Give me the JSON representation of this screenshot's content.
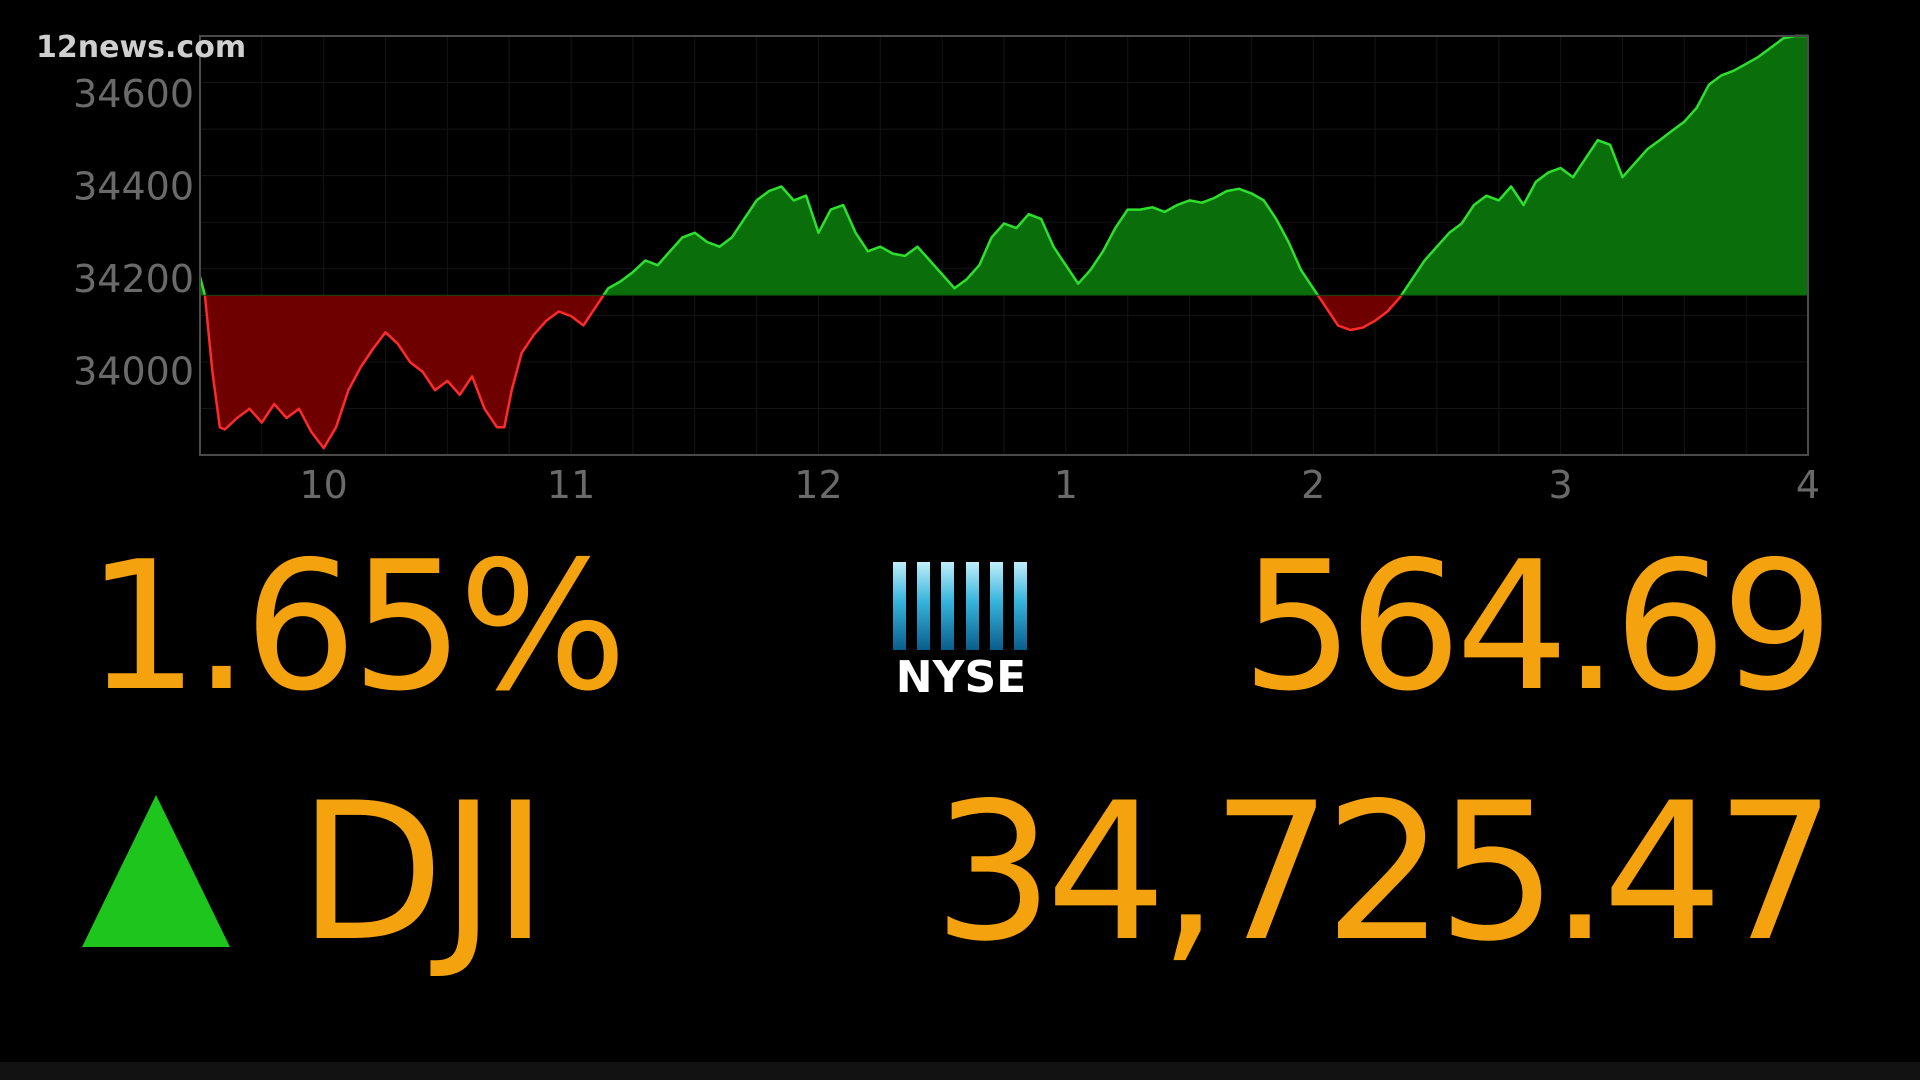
{
  "watermark": "12news.com",
  "colors": {
    "background": "#000000",
    "figure": "#f5a20f",
    "gain_line": "#2ee02e",
    "gain_fill": "#0a6e0a",
    "loss_line": "#ff2a2a",
    "loss_fill": "#6e0000",
    "up_arrow": "#1dc51d",
    "tick_text": "#6a6a6a"
  },
  "chart_data": {
    "type": "area",
    "title": "",
    "xlabel": "",
    "ylabel": "",
    "baseline": 34165,
    "xlim": [
      9.5,
      16
    ],
    "ylim": [
      33820,
      34725
    ],
    "grid": true,
    "yticks": [
      34000,
      34200,
      34400,
      34600
    ],
    "ytick_labels": [
      "34000",
      "34200",
      "34400",
      "34600"
    ],
    "xticks": [
      10,
      11,
      12,
      13,
      14,
      15,
      16
    ],
    "xtick_labels": [
      "10",
      "11",
      "12",
      "1",
      "2",
      "3",
      "4"
    ],
    "series": [
      {
        "x": [
          9.5,
          9.52,
          9.55,
          9.58,
          9.6,
          9.65,
          9.7,
          9.75,
          9.8,
          9.85,
          9.9,
          9.95,
          10.0,
          10.05,
          10.1,
          10.15,
          10.2,
          10.25,
          10.3,
          10.35,
          10.4,
          10.45,
          10.5,
          10.55,
          10.6,
          10.65,
          10.7,
          10.73,
          10.76,
          10.8,
          10.85,
          10.9,
          10.95,
          11.0,
          11.05,
          11.1,
          11.15,
          11.2,
          11.25,
          11.3,
          11.35,
          11.4,
          11.45,
          11.5,
          11.55,
          11.6,
          11.65,
          11.7,
          11.75,
          11.8,
          11.85,
          11.9,
          11.95,
          12.0,
          12.05,
          12.1,
          12.15,
          12.2,
          12.25,
          12.3,
          12.35,
          12.4,
          12.45,
          12.5,
          12.55,
          12.6,
          12.65,
          12.7,
          12.75,
          12.8,
          12.85,
          12.9,
          12.95,
          13.0,
          13.05,
          13.1,
          13.15,
          13.2,
          13.25,
          13.3,
          13.35,
          13.4,
          13.45,
          13.5,
          13.55,
          13.6,
          13.65,
          13.7,
          13.75,
          13.8,
          13.85,
          13.9,
          13.95,
          14.0,
          14.05,
          14.1,
          14.15,
          14.2,
          14.25,
          14.3,
          14.35,
          14.4,
          14.45,
          14.5,
          14.55,
          14.6,
          14.65,
          14.7,
          14.75,
          14.8,
          14.85,
          14.9,
          14.95,
          15.0,
          15.05,
          15.1,
          15.15,
          15.2,
          15.25,
          15.3,
          15.35,
          15.4,
          15.45,
          15.5,
          15.55,
          15.6,
          15.65,
          15.7,
          15.75,
          15.8,
          15.85,
          15.9,
          15.95,
          16.0
        ],
        "y": [
          34205,
          34165,
          34000,
          33880,
          33875,
          33900,
          33920,
          33890,
          33930,
          33900,
          33920,
          33870,
          33835,
          33880,
          33960,
          34010,
          34050,
          34085,
          34060,
          34020,
          34000,
          33960,
          33980,
          33950,
          33990,
          33920,
          33880,
          33880,
          33960,
          34040,
          34080,
          34110,
          34130,
          34120,
          34100,
          34140,
          34180,
          34195,
          34215,
          34240,
          34230,
          34260,
          34290,
          34300,
          34280,
          34270,
          34290,
          34330,
          34370,
          34390,
          34400,
          34370,
          34380,
          34300,
          34350,
          34360,
          34300,
          34260,
          34270,
          34255,
          34250,
          34270,
          34240,
          34210,
          34180,
          34200,
          34230,
          34290,
          34320,
          34310,
          34340,
          34330,
          34270,
          34230,
          34190,
          34220,
          34260,
          34310,
          34350,
          34350,
          34355,
          34345,
          34360,
          34370,
          34365,
          34375,
          34390,
          34395,
          34385,
          34370,
          34330,
          34280,
          34220,
          34180,
          34140,
          34100,
          34090,
          34095,
          34110,
          34130,
          34160,
          34200,
          34240,
          34270,
          34300,
          34320,
          34360,
          34380,
          34370,
          34400,
          34360,
          34410,
          34430,
          34440,
          34420,
          34460,
          34500,
          34490,
          34420,
          34450,
          34480,
          34500,
          34520,
          34540,
          34570,
          34620,
          34640,
          34650,
          34665,
          34680,
          34700,
          34720,
          34725,
          34725
        ]
      }
    ]
  },
  "stats": {
    "pct_change": "1.65%",
    "nyse_change": "564.69",
    "index_name": "DJI",
    "index_value": "34,725.47",
    "direction": "up"
  },
  "nyse_logo": {
    "text": "NYSE",
    "bar_count": 6
  }
}
